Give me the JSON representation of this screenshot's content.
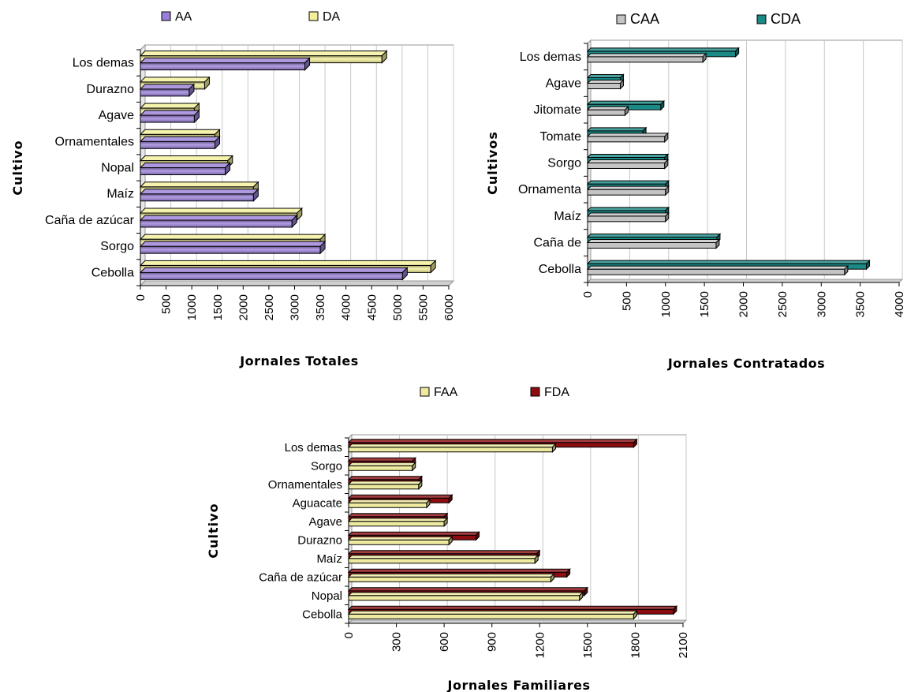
{
  "colors": {
    "AA": "#9a7fd8",
    "DA": "#f4f09a",
    "CAA": "#c4c4c4",
    "CDA": "#1a8a86",
    "FAA": "#eeeaa0",
    "FDA": "#8c0c10"
  },
  "chart_data": [
    {
      "type": "bar",
      "orientation": "horizontal",
      "xlabel": "Jornales Totales",
      "ylabel": "Cultivo",
      "xlim": [
        0,
        6000
      ],
      "xticks": [
        "0",
        "500",
        "1000",
        "1500",
        "2000",
        "2500",
        "3000",
        "3500",
        "4000",
        "4500",
        "5000",
        "5500",
        "6000"
      ],
      "categories": [
        "Los demas",
        "Durazno",
        "Agave",
        "Ornamentales",
        "Nopal",
        "Maíz",
        "Caña de azúcar",
        "Sorgo",
        "Cebolla"
      ],
      "series": [
        {
          "name": "AA",
          "color": "#9a7fd8",
          "values": [
            3200,
            950,
            1050,
            1450,
            1650,
            2200,
            2950,
            3500,
            5100
          ]
        },
        {
          "name": "DA",
          "color": "#f4f09a",
          "values": [
            4700,
            1250,
            1050,
            1450,
            1700,
            2200,
            3050,
            3500,
            5650
          ]
        }
      ],
      "legend": "top"
    },
    {
      "type": "bar",
      "orientation": "horizontal",
      "xlabel": "Jornales Contratados",
      "ylabel": "Cultivos",
      "xlim": [
        0,
        4000
      ],
      "xticks": [
        "0",
        "500",
        "1000",
        "1500",
        "2000",
        "2500",
        "3000",
        "3500",
        "4000"
      ],
      "categories": [
        "Los demas",
        "Agave",
        "Jitomate",
        "Tomate",
        "Sorgo",
        "Ornamenta",
        "Maíz",
        "Caña de",
        "Cebolla"
      ],
      "series": [
        {
          "name": "CAA",
          "color": "#c4c4c4",
          "values": [
            1480,
            420,
            480,
            990,
            990,
            1000,
            1000,
            1650,
            3300
          ]
        },
        {
          "name": "CDA",
          "color": "#1a8a86",
          "values": [
            1900,
            420,
            940,
            710,
            990,
            1000,
            1000,
            1660,
            3580
          ]
        }
      ],
      "legend": "top"
    },
    {
      "type": "bar",
      "orientation": "horizontal",
      "xlabel": "Jornales Familiares",
      "ylabel": "Cultivo",
      "xlim": [
        0,
        2100
      ],
      "xticks": [
        "0",
        "300",
        "600",
        "900",
        "1200",
        "1500",
        "1800",
        "2100"
      ],
      "categories": [
        "Los demas",
        "Sorgo",
        "Ornamentales",
        "Aguacate",
        "Agave",
        "Durazno",
        "Maíz",
        "Caña de azúcar",
        "Nopal",
        "Cebolla"
      ],
      "series": [
        {
          "name": "FAA",
          "color": "#eeeaa0",
          "values": [
            1280,
            400,
            440,
            490,
            600,
            630,
            1170,
            1270,
            1450,
            1790
          ]
        },
        {
          "name": "FDA",
          "color": "#8c0c10",
          "values": [
            1790,
            400,
            440,
            630,
            600,
            800,
            1180,
            1370,
            1480,
            2040
          ]
        }
      ],
      "legend": "top"
    }
  ]
}
